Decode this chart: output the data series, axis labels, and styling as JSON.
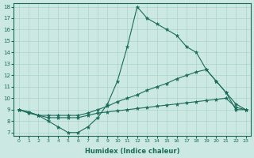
{
  "xlabel": "Humidex (Indice chaleur)",
  "xlim": [
    0,
    23
  ],
  "ylim": [
    7,
    18
  ],
  "xticks": [
    0,
    1,
    2,
    3,
    4,
    5,
    6,
    7,
    8,
    9,
    10,
    11,
    12,
    13,
    14,
    15,
    16,
    17,
    18,
    19,
    20,
    21,
    22,
    23
  ],
  "yticks": [
    7,
    8,
    9,
    10,
    11,
    12,
    13,
    14,
    15,
    16,
    17,
    18
  ],
  "background_color": "#cce8e2",
  "grid_color": "#aad4cc",
  "line_color": "#1a6b5a",
  "line1_x": [
    0,
    1,
    2,
    3,
    4,
    5,
    6,
    7,
    8,
    9,
    10,
    11,
    12,
    13,
    14,
    15,
    16,
    17,
    18,
    19,
    20,
    21,
    22,
    23
  ],
  "line1_y": [
    9.0,
    8.7,
    8.5,
    8.0,
    7.5,
    7.0,
    7.0,
    7.5,
    8.3,
    9.5,
    11.5,
    14.5,
    18.0,
    17.0,
    16.5,
    16.0,
    15.5,
    14.5,
    14.0,
    12.5,
    11.5,
    10.5,
    9.5,
    9.0
  ],
  "line2_x": [
    0,
    1,
    2,
    3,
    4,
    5,
    6,
    7,
    8,
    9,
    10,
    11,
    12,
    13,
    14,
    15,
    16,
    17,
    18,
    19,
    20,
    21,
    22,
    23
  ],
  "line2_y": [
    9.0,
    8.8,
    8.5,
    8.5,
    8.5,
    8.5,
    8.5,
    8.7,
    9.0,
    9.3,
    9.7,
    10.0,
    10.3,
    10.7,
    11.0,
    11.3,
    11.7,
    12.0,
    12.3,
    12.5,
    11.5,
    10.5,
    9.0,
    9.0
  ],
  "line3_x": [
    0,
    1,
    2,
    3,
    4,
    5,
    6,
    7,
    8,
    9,
    10,
    11,
    12,
    13,
    14,
    15,
    16,
    17,
    18,
    19,
    20,
    21,
    22,
    23
  ],
  "line3_y": [
    9.0,
    8.8,
    8.5,
    8.3,
    8.3,
    8.3,
    8.3,
    8.5,
    8.7,
    8.8,
    8.9,
    9.0,
    9.1,
    9.2,
    9.3,
    9.4,
    9.5,
    9.6,
    9.7,
    9.8,
    9.9,
    10.0,
    9.2,
    9.0
  ]
}
